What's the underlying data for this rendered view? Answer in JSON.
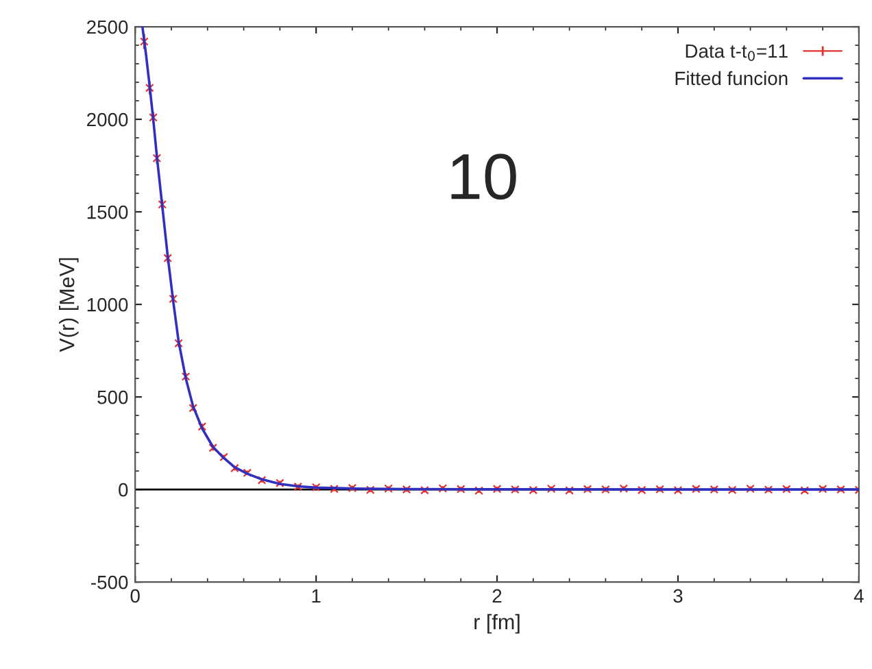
{
  "chart_data": {
    "type": "line",
    "xlabel": "r [fm]",
    "ylabel": "V(r) [MeV]",
    "xlim": [
      0,
      4
    ],
    "ylim": [
      -500,
      2500
    ],
    "xticks": [
      0,
      1,
      2,
      3,
      4
    ],
    "yticks": [
      -500,
      0,
      500,
      1000,
      1500,
      2000,
      2500
    ],
    "grid": false,
    "legend": "top right",
    "ref_lines": [
      {
        "axis": "y",
        "value": 0,
        "color": "#000000"
      }
    ],
    "annotations": [
      "10"
    ],
    "series": [
      {
        "name": "Data t-t$_{0}$=11",
        "type": "scatter",
        "color": "#e03030",
        "marker": "cross",
        "x": [
          0.05,
          0.08,
          0.1,
          0.12,
          0.15,
          0.18,
          0.21,
          0.24,
          0.28,
          0.32,
          0.37,
          0.43,
          0.49,
          0.55,
          0.62,
          0.7,
          0.8,
          0.9,
          1.0,
          1.1,
          1.2,
          1.3,
          1.4,
          1.5,
          1.6,
          1.7,
          1.8,
          1.9,
          2.0,
          2.1,
          2.2,
          2.3,
          2.4,
          2.5,
          2.6,
          2.7,
          2.8,
          2.9,
          3.0,
          3.1,
          3.2,
          3.3,
          3.4,
          3.5,
          3.6,
          3.7,
          3.8,
          3.9,
          4.0
        ],
        "values": [
          2420,
          2170,
          2010,
          1790,
          1540,
          1250,
          1030,
          790,
          610,
          440,
          340,
          225,
          175,
          115,
          90,
          50,
          35,
          15,
          12,
          3,
          8,
          -2,
          5,
          0,
          -4,
          6,
          2,
          -6,
          3,
          0,
          -3,
          4,
          -5,
          2,
          0,
          5,
          -3,
          1,
          -4,
          3,
          0,
          -2,
          4,
          -1,
          2,
          -5,
          3,
          0,
          -2
        ],
        "errors": [
          40,
          35,
          30,
          30,
          25,
          25,
          20,
          20,
          18,
          15,
          15,
          15,
          12,
          12,
          12,
          12,
          12,
          12,
          12,
          12,
          12,
          12,
          12,
          12,
          12,
          12,
          12,
          12,
          12,
          12,
          12,
          12,
          12,
          12,
          12,
          12,
          12,
          12,
          12,
          12,
          12,
          12,
          12,
          12,
          12,
          12,
          12,
          12,
          12
        ]
      },
      {
        "name": "Fitted funcion",
        "color": "#3030c0",
        "line_style": "solid",
        "x": [
          0.04,
          0.06,
          0.08,
          0.1,
          0.12,
          0.15,
          0.18,
          0.21,
          0.24,
          0.28,
          0.32,
          0.37,
          0.43,
          0.49,
          0.55,
          0.62,
          0.7,
          0.8,
          0.9,
          1.0,
          1.2,
          1.5,
          2.0,
          3.0,
          4.0
        ],
        "values": [
          2500,
          2350,
          2180,
          2000,
          1800,
          1530,
          1260,
          1020,
          800,
          600,
          450,
          330,
          230,
          170,
          120,
          85,
          55,
          30,
          17,
          10,
          5,
          2,
          1,
          0,
          0
        ]
      }
    ]
  }
}
